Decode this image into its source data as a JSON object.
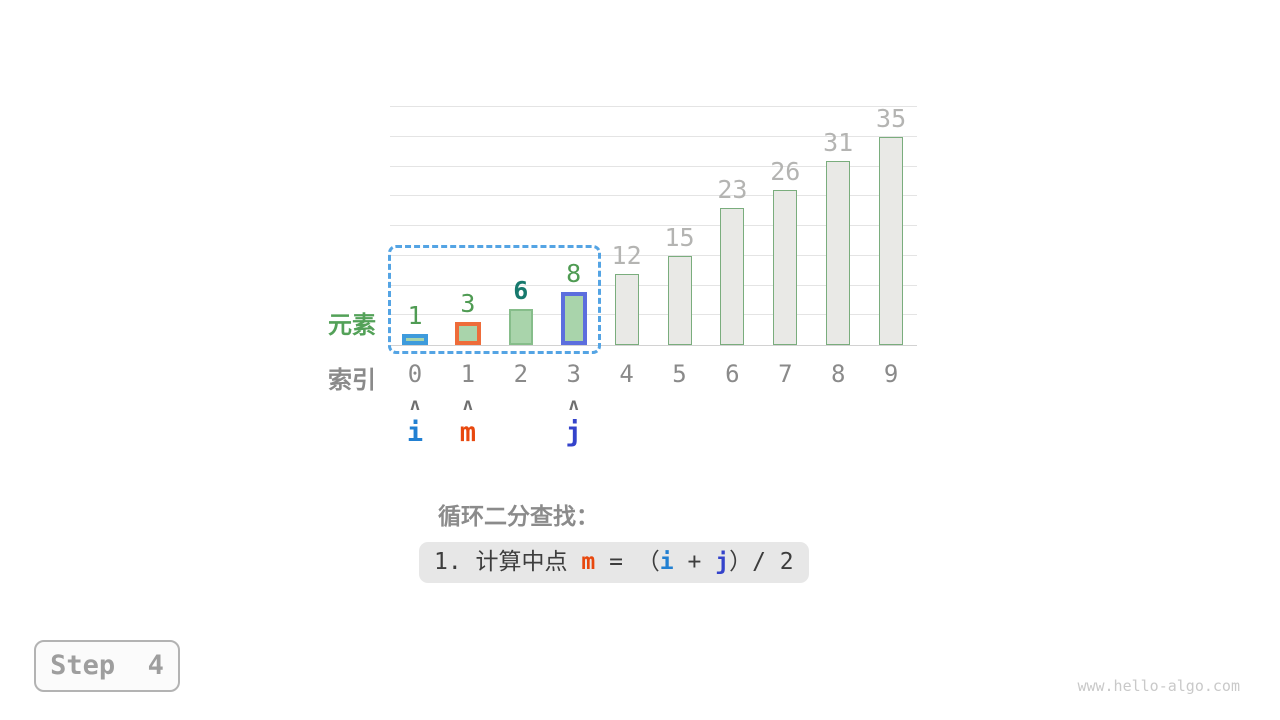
{
  "caption": "循环二分查找：",
  "step_badge": "Step  4",
  "watermark": "www.hello-algo.com",
  "labels": {
    "element_row": "元素",
    "index_row": "索引"
  },
  "pointers": [
    {
      "label": "i",
      "index": 0
    },
    {
      "label": "m",
      "index": 1
    },
    {
      "label": "j",
      "index": 3
    }
  ],
  "caret_glyph": "ʌ",
  "formula": {
    "segments": [
      {
        "text": "1. 计算中点 ",
        "color": "default"
      },
      {
        "text": "m",
        "color": "m"
      },
      {
        "text": " = ",
        "color": "default"
      },
      {
        "text": "（",
        "color": "default"
      },
      {
        "text": "i",
        "color": "i"
      },
      {
        "text": " + ",
        "color": "default"
      },
      {
        "text": "j",
        "color": "j"
      },
      {
        "text": "）/ 2",
        "color": "default"
      }
    ]
  },
  "colors": {
    "i": "#2280d2",
    "m": "#e8480e",
    "j": "#3443cb",
    "element_label": "#53a158",
    "index_label": "#8a8a8a",
    "bar_active_fill": "#a9d4ab",
    "bar_active_border": "#86bd8a",
    "bar_inactive_fill": "#e9e9e6",
    "bar_inactive_border": "#7aad7d",
    "highlight_i_border": "#3e9bdc",
    "highlight_m_border": "#ee6c3a",
    "highlight_j_border": "#5c6ede",
    "value_label_active": "#4f9b53",
    "value_label_target": "#17796d",
    "value_label_inactive": "#b4b4b2",
    "range_box": "#54a4e4"
  },
  "chart_data": {
    "type": "bar",
    "title": "",
    "categories": [
      "0",
      "1",
      "2",
      "3",
      "4",
      "5",
      "6",
      "7",
      "8",
      "9"
    ],
    "values": [
      1,
      3,
      6,
      8,
      12,
      15,
      23,
      26,
      31,
      35
    ],
    "xlabel": "索引",
    "ylabel": "元素",
    "ylim": [
      0,
      40
    ],
    "gridline_step": 5,
    "grid": true,
    "legend": "none",
    "bars": [
      {
        "state": "active",
        "highlight": "i",
        "label_style": "active"
      },
      {
        "state": "active",
        "highlight": "m",
        "label_style": "active"
      },
      {
        "state": "active",
        "highlight": null,
        "label_style": "target"
      },
      {
        "state": "active",
        "highlight": "j",
        "label_style": "active"
      },
      {
        "state": "inactive",
        "highlight": null,
        "label_style": "inactive"
      },
      {
        "state": "inactive",
        "highlight": null,
        "label_style": "inactive"
      },
      {
        "state": "inactive",
        "highlight": null,
        "label_style": "inactive"
      },
      {
        "state": "inactive",
        "highlight": null,
        "label_style": "inactive"
      },
      {
        "state": "inactive",
        "highlight": null,
        "label_style": "inactive"
      },
      {
        "state": "inactive",
        "highlight": null,
        "label_style": "inactive"
      }
    ],
    "search_range": {
      "from_index": 0,
      "to_index": 3
    }
  }
}
